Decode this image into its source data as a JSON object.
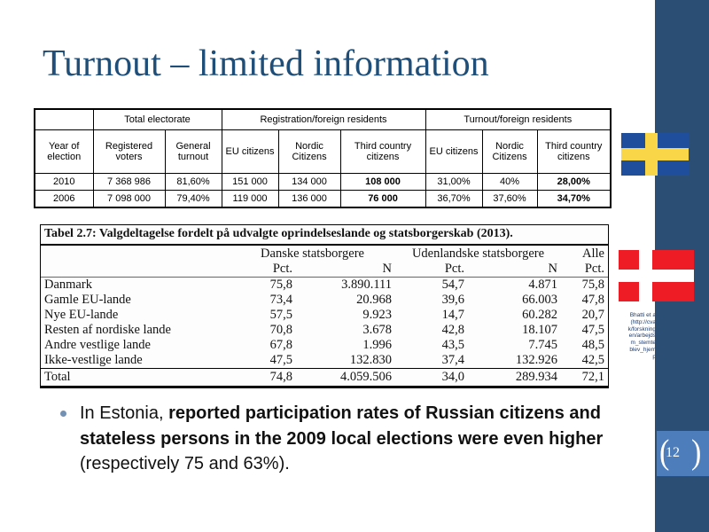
{
  "slide": {
    "title": "Turnout – limited information",
    "page_number": "12"
  },
  "colors": {
    "title_color": "#1F4E79",
    "side_bar": "#2A4E74",
    "page_badge": "#4D7EBB",
    "sweden_blue": "#1F4E9C",
    "sweden_yellow": "#F8D648",
    "denmark_red": "#EE1C25",
    "bullet_dot": "#7291B4"
  },
  "icons": {
    "sweden_flag": "sweden-flag",
    "denmark_flag": "denmark-flag",
    "left_bracket": "(",
    "right_bracket": ")"
  },
  "electorate_table": {
    "group_headers": [
      {
        "label": "",
        "span": 1
      },
      {
        "label": "Total electorate",
        "span": 2
      },
      {
        "label": "Registration/foreign residents",
        "span": 3
      },
      {
        "label": "Turnout/foreign residents",
        "span": 3
      }
    ],
    "column_headers": [
      "Year of election",
      "Registered voters",
      "General turnout",
      "EU citizens",
      "Nordic Citizens",
      "Third country citizens",
      "EU citizens",
      "Nordic Citizens",
      "Third country citizens"
    ],
    "rows": [
      {
        "cells": [
          "2010",
          "7 368 986",
          "81,60%",
          "151 000",
          "134 000",
          "108 000",
          "31,00%",
          "40%",
          "28,00%"
        ],
        "bold": [
          5,
          8
        ]
      },
      {
        "cells": [
          "2006",
          "7 098 000",
          "79,40%",
          "119 000",
          "136 000",
          "76 000",
          "36,70%",
          "37,60%",
          "34,70%"
        ],
        "bold": [
          5,
          8
        ]
      }
    ]
  },
  "report_table": {
    "title": "Tabel 2.7: Valgdeltagelse fordelt på udvalgte oprindelseslande og statsborgerskab (2013).",
    "group_headers": [
      "Danske statsborgere",
      "Udenlandske statsborgere",
      "Alle"
    ],
    "sub_headers": [
      "Pct.",
      "N",
      "Pct.",
      "N",
      "Pct."
    ],
    "rows": [
      [
        "Danmark",
        "75,8",
        "3.890.111",
        "54,7",
        "4.871",
        "75,8"
      ],
      [
        "Gamle EU-lande",
        "73,4",
        "20.968",
        "39,6",
        "66.003",
        "47,8"
      ],
      [
        "Nye EU-lande",
        "57,5",
        "9.923",
        "14,7",
        "60.282",
        "20,7"
      ],
      [
        "Resten af nordiske lande",
        "70,8",
        "3.678",
        "42,8",
        "18.107",
        "47,5"
      ],
      [
        "Andre vestlige lande",
        "67,8",
        "1.996",
        "43,5",
        "7.745",
        "48,5"
      ],
      [
        "Ikke-vestlige lande",
        "47,5",
        "132.830",
        "37,4",
        "132.926",
        "42,5"
      ]
    ],
    "total_row": [
      "Total",
      "74,8",
      "4.059.506",
      "34,0",
      "289.934",
      "72,1"
    ]
  },
  "citation": {
    "lines": [
      "Bhatti et a",
      "(http://cva",
      "k/forskning",
      "en/arbejds",
      "m_stemte",
      "blev_hjem",
      "p"
    ]
  },
  "bullet": {
    "lines": [
      [
        {
          "text": "In Estonia, ",
          "bold": false
        },
        {
          "text": "reported participation rates of Russian citizens and",
          "bold": true
        }
      ],
      [
        {
          "text": "stateless persons in the 2009 local elections were even higher",
          "bold": true
        }
      ],
      [
        {
          "text": "(respectively 75 and 63%).",
          "bold": false
        }
      ]
    ]
  }
}
